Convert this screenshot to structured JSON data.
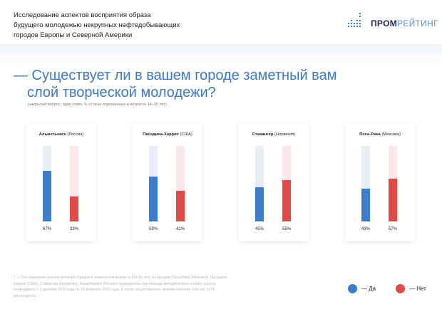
{
  "header": {
    "title_lines": [
      "Исследование аспектов восприятия образа",
      "будущего молодежью некрупных нефтедобывающих",
      "городов Европы и Северной Америки"
    ],
    "logo": {
      "bold": "ПРОМ",
      "light": "РЕЙТИНГ"
    }
  },
  "question": {
    "line1": "— Существует ли в вашем городе заметный вам",
    "line2": "слой творческой молодежи?",
    "note": "(закрытый вопрос, один ответ, % от всех опрошенных в возрасте 14–30 лет)"
  },
  "colors": {
    "yes": "#3b7ccc",
    "no": "#e24a47"
  },
  "chart_data": {
    "type": "bar",
    "categories": [
      "Альметьевск (Россия)",
      "Пасадина-Харрис (США)",
      "Ставангер (Норвегия)",
      "Поса-Рика (Мексика)"
    ],
    "cities": [
      {
        "name": "Альметьевск",
        "country": "(Россия)"
      },
      {
        "name": "Пасадина-Харрис",
        "country": "(США)"
      },
      {
        "name": "Ставангер",
        "country": "(Норвегия)"
      },
      {
        "name": "Поса-Рика",
        "country": "(Мексика)"
      }
    ],
    "series": [
      {
        "name": "Да",
        "values": [
          67,
          59,
          45,
          43
        ]
      },
      {
        "name": "Нет",
        "values": [
          33,
          41,
          55,
          57
        ]
      }
    ],
    "labels": {
      "yes": [
        "67%",
        "59%",
        "45%",
        "43%"
      ],
      "no": [
        "33%",
        "41%",
        "55%",
        "57%"
      ]
    },
    "ylim": [
      0,
      100
    ]
  },
  "legend": {
    "yes": "— Да",
    "no": "— Нет"
  },
  "footnote": "* — Обследование мнения жителей городов в заявленном возрасте (14-30 лет) по городам Поса-Рика (Мексика), Пасадина - Харрис (США), Ставангер (Норвегия), Альметьевск (Россия) проводилось при помощи методического онлайн опроса, проводимого с 3 декабря 2019 года по 19 февраля 2020 года. В срезе общественного мнения приняли участие 1374 респондента."
}
